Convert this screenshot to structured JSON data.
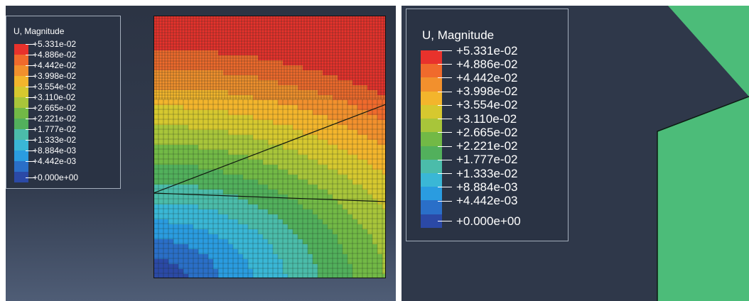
{
  "left_view": {
    "legend": {
      "title": "U, Magnitude",
      "labels": [
        "+5.331e-02",
        "+4.886e-02",
        "+4.442e-02",
        "+3.998e-02",
        "+3.554e-02",
        "+3.110e-02",
        "+2.665e-02",
        "+2.221e-02",
        "+1.777e-02",
        "+1.333e-02",
        "+8.884e-03",
        "+4.442e-03",
        "+0.000e+00"
      ]
    }
  },
  "right_view": {
    "legend": {
      "title": "U, Magnitude",
      "labels": [
        "+5.331e-02",
        "+4.886e-02",
        "+4.442e-02",
        "+3.998e-02",
        "+3.554e-02",
        "+3.110e-02",
        "+2.665e-02",
        "+2.221e-02",
        "+1.777e-02",
        "+1.333e-02",
        "+8.884e-03",
        "+4.442e-03",
        "+0.000e+00"
      ]
    },
    "part_color": "#4cbc79"
  },
  "colors": {
    "contour_bands_top_to_bottom": [
      "#e8322c",
      "#f06a2c",
      "#f2902d",
      "#f3b52c",
      "#d6c82f",
      "#a8c53a",
      "#72b946",
      "#52b05c",
      "#4bbcaa",
      "#3ab7d6",
      "#2a9ce0",
      "#2a6fc8",
      "#2b49a6"
    ],
    "background_dark": "#2c3444",
    "legend_border": "#a3adbb",
    "mesh_line": "#1d2a1f"
  }
}
